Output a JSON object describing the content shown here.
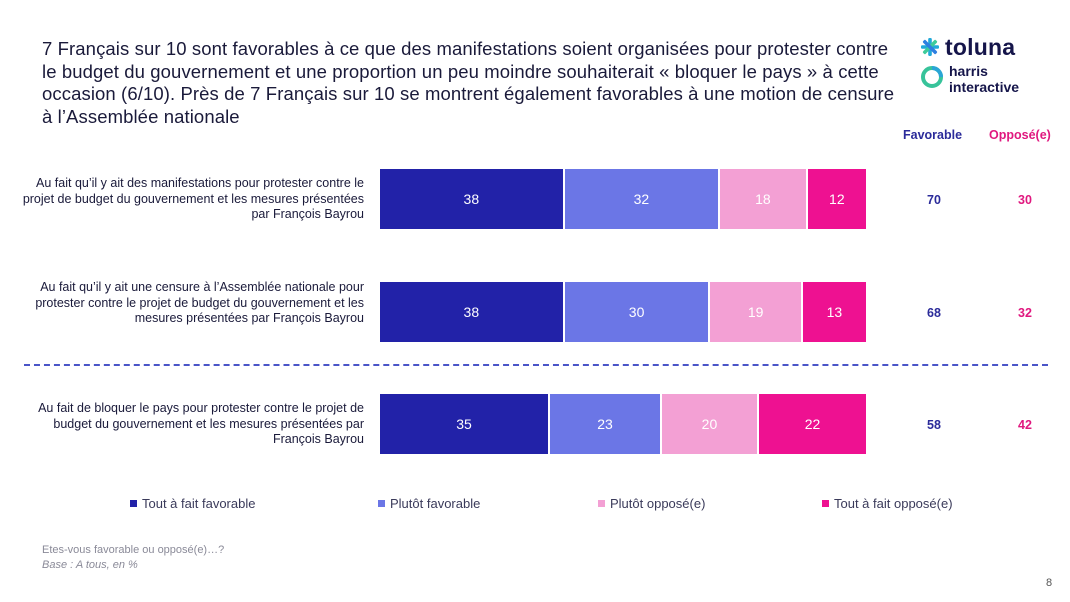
{
  "title": "7 Français sur 10 sont favorables à ce que des manifestations soient organisées pour protester contre le budget du gouvernement et une proportion un peu moindre souhaiterait « bloquer le pays » à cette occasion (6/10). Près de 7 Français sur 10 se montrent également favorables à une motion de censure à l’Assemblée nationale",
  "logo": {
    "brand": "toluna",
    "sub_line1": "harris",
    "sub_line2": "interactive"
  },
  "columns": {
    "favorable": "Favorable",
    "oppose": "Opposé(e)"
  },
  "colors": {
    "tout_fav": "#2222a8",
    "plutot_fav": "#6b76e6",
    "plutot_opp": "#f3a0d4",
    "tout_opp": "#ee1191",
    "fav_text": "#2b2b9a",
    "opp_text": "#e0187f"
  },
  "chart_data": {
    "type": "bar",
    "orientation": "horizontal",
    "stacked": true,
    "categories": [
      "Au fait qu’il y ait des manifestations pour protester contre le projet de budget du gouvernement et les mesures présentées par François Bayrou",
      "Au fait qu’il y ait une censure à l’Assemblée nationale pour protester contre le projet de budget du gouvernement et les mesures présentées par François Bayrou",
      "Au fait de bloquer le pays pour protester contre le projet de budget du gouvernement et les mesures présentées par François Bayrou"
    ],
    "series": [
      {
        "name": "Tout à fait favorable",
        "values": [
          38,
          38,
          35
        ]
      },
      {
        "name": "Plutôt favorable",
        "values": [
          32,
          30,
          23
        ]
      },
      {
        "name": "Plutôt opposé(e)",
        "values": [
          18,
          19,
          20
        ]
      },
      {
        "name": "Tout à fait opposé(e)",
        "values": [
          12,
          13,
          22
        ]
      }
    ],
    "totals": {
      "favorable": [
        70,
        68,
        58
      ],
      "oppose": [
        30,
        32,
        42
      ]
    },
    "xlim": [
      0,
      100
    ],
    "unit": "%"
  },
  "footnote": {
    "question": "Etes-vous favorable ou opposé(e)…?",
    "base": "Base : A tous, en %"
  },
  "page_number": "8"
}
